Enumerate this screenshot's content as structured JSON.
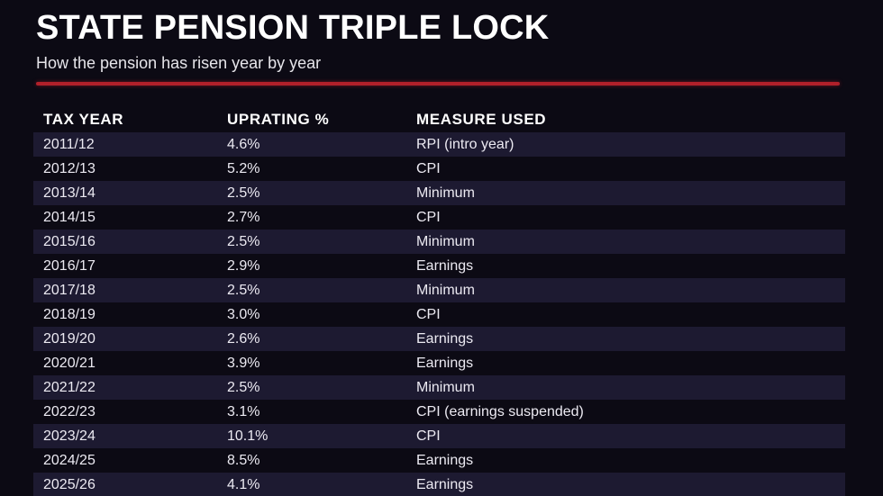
{
  "chart_data": {
    "type": "table",
    "title": "STATE PENSION TRIPLE LOCK",
    "subtitle": "How the pension has risen year by year",
    "columns": [
      "TAX YEAR",
      "UPRATING %",
      "MEASURE USED"
    ],
    "rows": [
      [
        "2011/12",
        "4.6%",
        "RPI (intro year)"
      ],
      [
        "2012/13",
        "5.2%",
        "CPI"
      ],
      [
        "2013/14",
        "2.5%",
        "Minimum"
      ],
      [
        "2014/15",
        "2.7%",
        "CPI"
      ],
      [
        "2015/16",
        "2.5%",
        "Minimum"
      ],
      [
        "2016/17",
        "2.9%",
        "Earnings"
      ],
      [
        "2017/18",
        "2.5%",
        "Minimum"
      ],
      [
        "2018/19",
        "3.0%",
        "CPI"
      ],
      [
        "2019/20",
        "2.6%",
        "Earnings"
      ],
      [
        "2020/21",
        "3.9%",
        "Earnings"
      ],
      [
        "2021/22",
        "2.5%",
        "Minimum"
      ],
      [
        "2022/23",
        "3.1%",
        "CPI (earnings suspended)"
      ],
      [
        "2023/24",
        "10.1%",
        "CPI"
      ],
      [
        "2024/25",
        "8.5%",
        "Earnings"
      ],
      [
        "2025/26",
        "4.1%",
        "Earnings"
      ]
    ],
    "layout": {
      "zebra_striping": true,
      "stripe_color": "#1d1a31",
      "background_color": "#0c0a14",
      "accent_color": "#b1202a",
      "text_color": "#ffffff"
    }
  }
}
